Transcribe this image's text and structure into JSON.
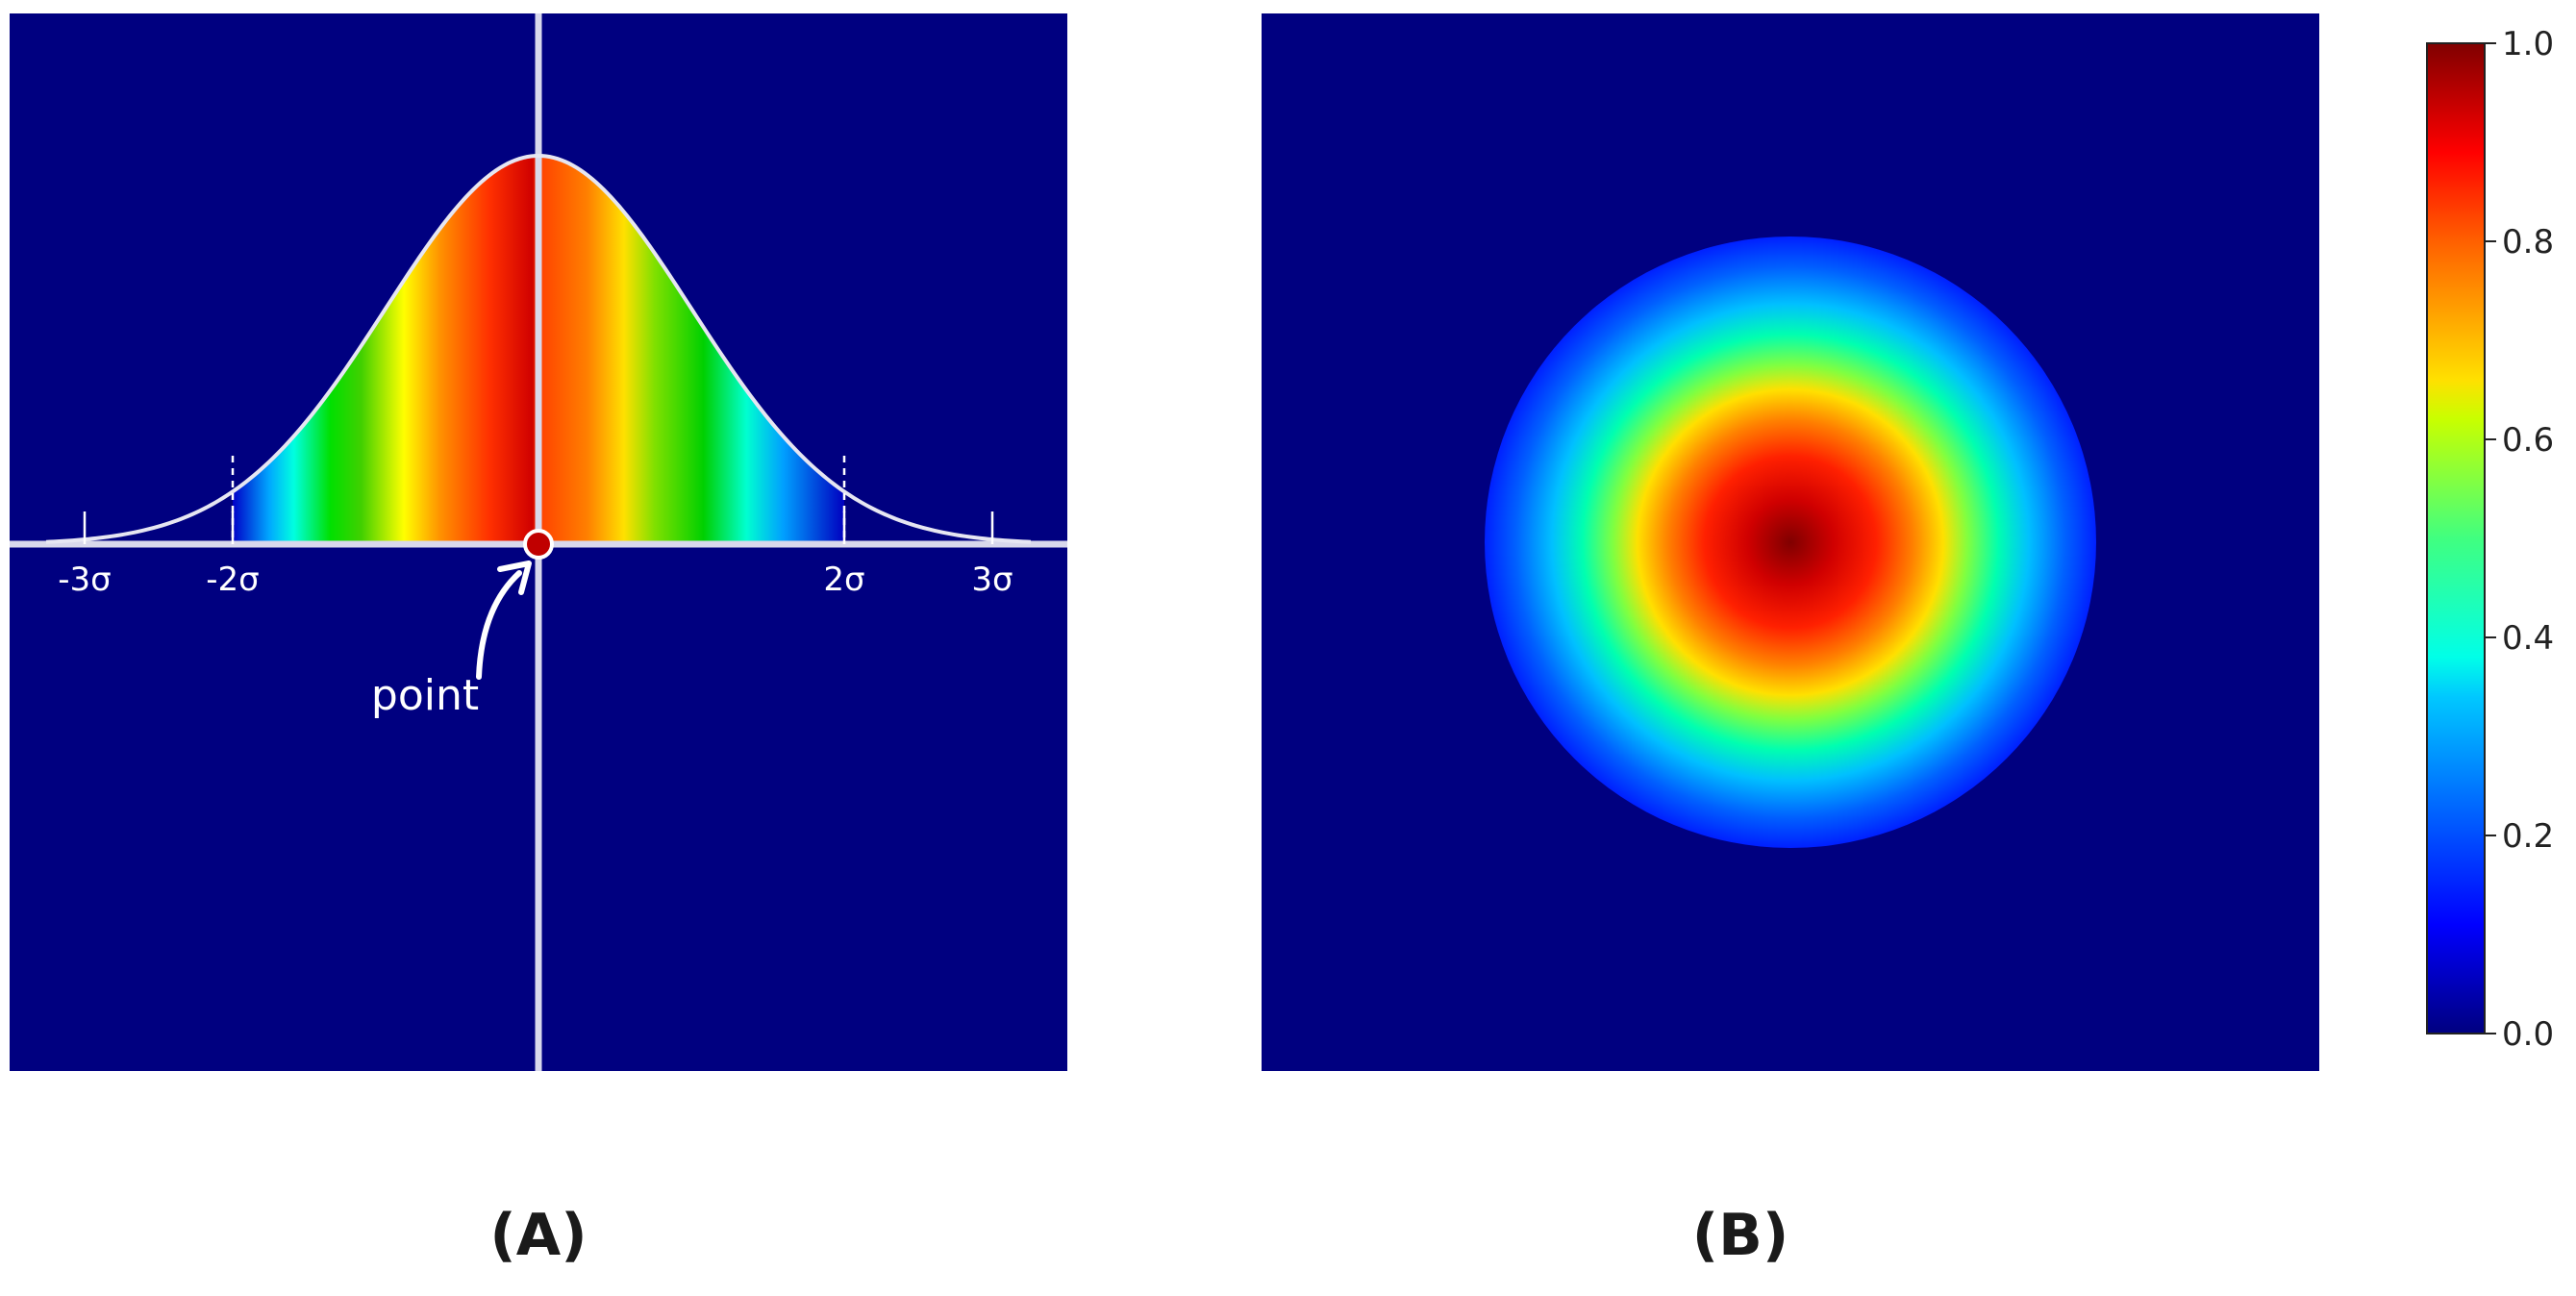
{
  "panel_a": {
    "sigma_ticks": [
      "-3σ",
      "-2σ",
      "2σ",
      "3σ"
    ],
    "point_label": "point",
    "caption": "(A)"
  },
  "panel_b": {
    "caption": "(B)"
  },
  "colorbar": {
    "ticks": [
      "0.0",
      "0.2",
      "0.4",
      "0.6",
      "0.8",
      "1.0"
    ],
    "min": 0.0,
    "max": 1.0,
    "colormap": "jet"
  },
  "colors": {
    "background": "#000080",
    "axis": "#d8d8ec",
    "curve": "#e6e6f2",
    "point": "#c00000"
  }
}
